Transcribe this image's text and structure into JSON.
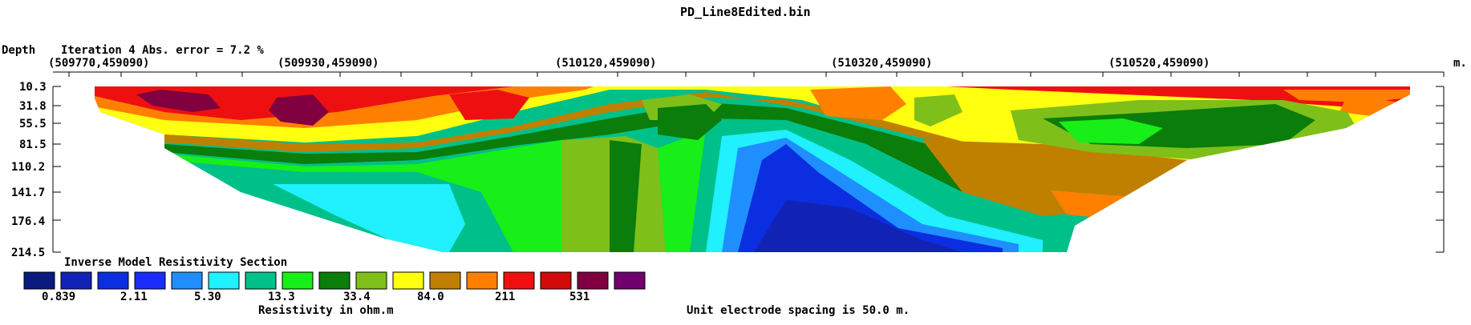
{
  "header": {
    "file_title": "PD_Line8Edited.bin",
    "depth_label": "Depth",
    "iteration_text": "Iteration 4 Abs. error = 7.2 %",
    "unit_m": "m."
  },
  "chart_data": {
    "type": "heatmap",
    "title": "Inverse Model Resistivity Section",
    "x_ticks": [
      "(509770,459090)",
      "(509930,459090)",
      "(510120,459090)",
      "(510320,459090)",
      "(510520,459090)"
    ],
    "depth_ticks": [
      "10.3",
      "31.8",
      "55.5",
      "81.5",
      "110.2",
      "141.7",
      "176.4",
      "214.5"
    ],
    "depth_values": [
      10.3,
      31.8,
      55.5,
      81.5,
      110.2,
      141.7,
      176.4,
      214.5
    ],
    "legend": {
      "title": "Inverse Model Resistivity Section",
      "colors": [
        "#0a1a80",
        "#1023b4",
        "#0b2ee0",
        "#1a2cff",
        "#1f8fff",
        "#20f0ff",
        "#00c08a",
        "#18ee18",
        "#0a7d0a",
        "#7fbf1a",
        "#ffff10",
        "#bf8000",
        "#ff8000",
        "#ee1010",
        "#d20a0a",
        "#800040",
        "#700070"
      ],
      "labels": [
        "0.839",
        "2.11",
        "5.30",
        "13.3",
        "33.4",
        "84.0",
        "211",
        "531"
      ],
      "unit_label": "Resistivity in ohm.m"
    },
    "spacing_note": "Unit electrode spacing is 50.0 m."
  }
}
